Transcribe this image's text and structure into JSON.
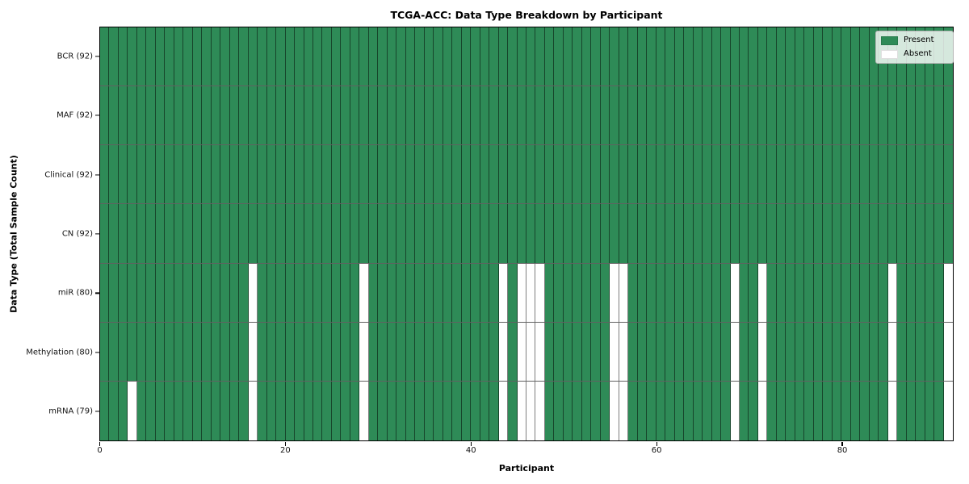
{
  "chart_data": {
    "type": "heatmap",
    "title": "TCGA-ACC: Data Type Breakdown by Participant",
    "xlabel": "Participant",
    "ylabel": "Data Type (Total Sample Count)",
    "x_range": [
      0,
      92
    ],
    "x_ticks": [
      0,
      20,
      40,
      60,
      80
    ],
    "n_participants": 92,
    "grid": "cell-borders",
    "legend_position": "upper right",
    "legend": [
      {
        "label": "Present",
        "color": "#2e8b57"
      },
      {
        "label": "Absent",
        "color": "#ffffff"
      }
    ],
    "colors": {
      "present": "#2e8b57",
      "absent": "#ffffff"
    },
    "rows": [
      {
        "label": "BCR (92)",
        "data_type": "BCR",
        "total_samples": 92,
        "absent_participants": []
      },
      {
        "label": "MAF (92)",
        "data_type": "MAF",
        "total_samples": 92,
        "absent_participants": []
      },
      {
        "label": "Clinical (92)",
        "data_type": "Clinical",
        "total_samples": 92,
        "absent_participants": []
      },
      {
        "label": "CN (92)",
        "data_type": "CN",
        "total_samples": 92,
        "absent_participants": []
      },
      {
        "label": "miR (80)",
        "data_type": "miR",
        "total_samples": 80,
        "absent_participants": [
          16,
          28,
          43,
          45,
          46,
          47,
          55,
          56,
          68,
          71,
          85,
          91
        ]
      },
      {
        "label": "Methylation (80)",
        "data_type": "Methylation",
        "total_samples": 80,
        "absent_participants": [
          16,
          28,
          43,
          45,
          46,
          47,
          55,
          56,
          68,
          71,
          85,
          91
        ]
      },
      {
        "label": "mRNA (79)",
        "data_type": "mRNA",
        "total_samples": 79,
        "absent_participants": [
          3,
          16,
          28,
          43,
          45,
          46,
          47,
          55,
          56,
          68,
          71,
          85,
          91
        ]
      }
    ]
  }
}
